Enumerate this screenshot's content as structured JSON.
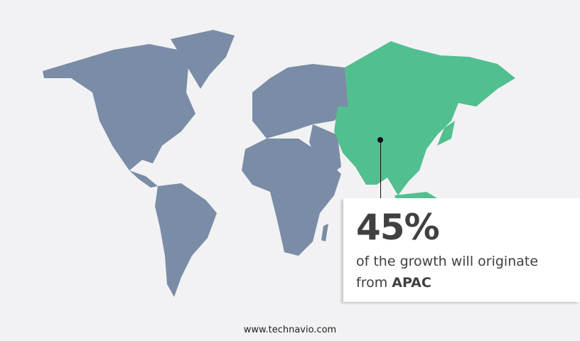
{
  "map": {
    "highlight_region": "APAC",
    "colors": {
      "base": "#7a8ca6",
      "highlight": "#52bf90",
      "background": "#f2f2f4"
    }
  },
  "callout": {
    "value": "45%",
    "text": "of the growth will originate",
    "prefix": "from",
    "region": "APAC"
  },
  "footer": {
    "url": "www.technavio.com"
  }
}
